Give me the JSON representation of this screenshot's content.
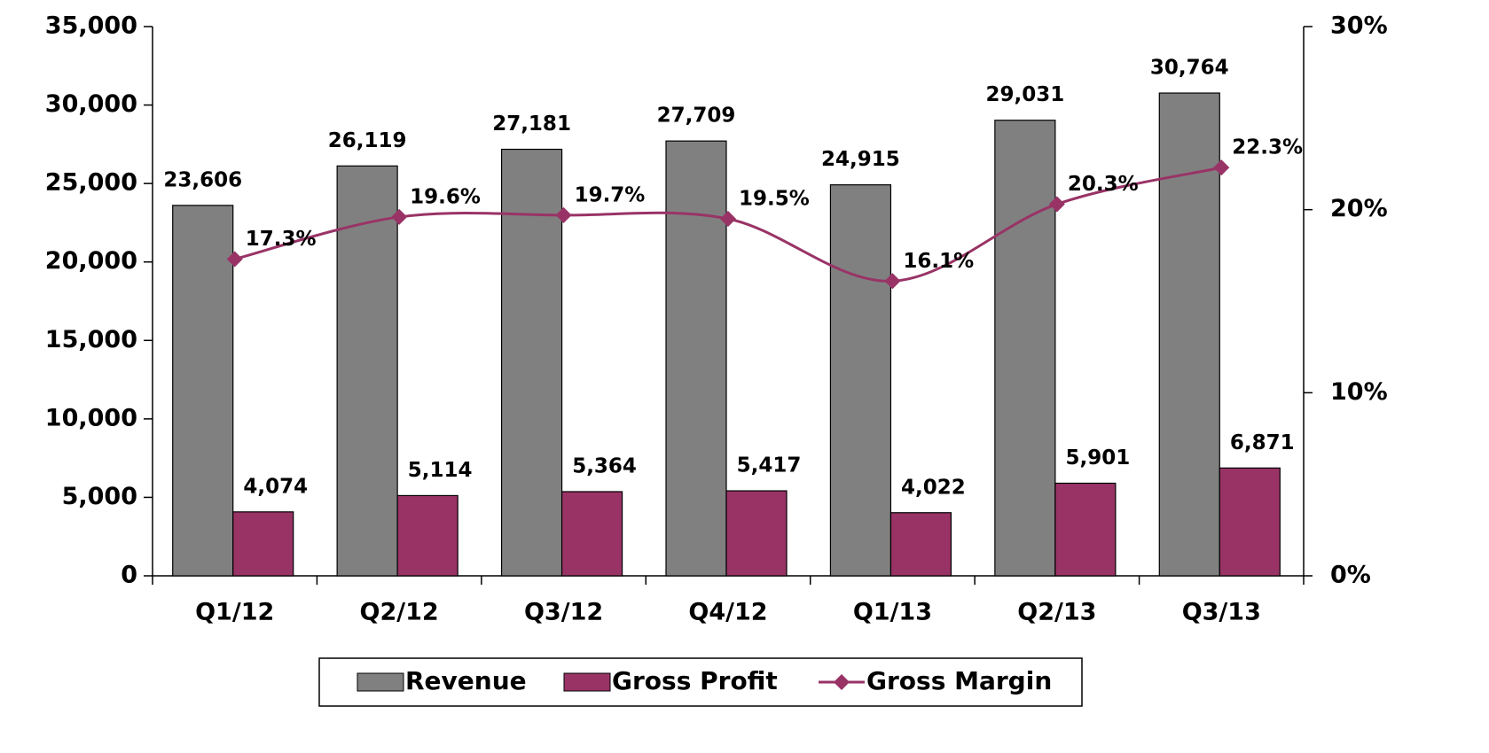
{
  "chart_data": {
    "type": "bar",
    "categories": [
      "Q1/12",
      "Q2/12",
      "Q3/12",
      "Q4/12",
      "Q1/13",
      "Q2/13",
      "Q3/13"
    ],
    "series": [
      {
        "name": "Revenue",
        "color": "#808080",
        "values": [
          23606,
          26119,
          27181,
          27709,
          24915,
          29031,
          30764
        ],
        "value_labels": [
          "23,606",
          "26,119",
          "27,181",
          "27,709",
          "24,915",
          "29,031",
          "30,764"
        ]
      },
      {
        "name": "Gross Profit",
        "color": "#993366",
        "values": [
          4074,
          5114,
          5364,
          5417,
          4022,
          5901,
          6871
        ],
        "value_labels": [
          "4,074",
          "5,114",
          "5,364",
          "5,417",
          "4,022",
          "5,901",
          "6,871"
        ]
      },
      {
        "name": "Gross Margin",
        "color": "#993366",
        "type": "line",
        "axis": "y2",
        "values": [
          17.3,
          19.6,
          19.7,
          19.5,
          16.1,
          20.3,
          22.3
        ],
        "value_labels": [
          "17.3%",
          "19.6%",
          "19.7%",
          "19.5%",
          "16.1%",
          "20.3%",
          "22.3%"
        ]
      }
    ],
    "ylim": [
      0,
      35000
    ],
    "yticks": [
      0,
      {
        "value": 5000,
        "label": "5,000"
      },
      {
        "value": 10000,
        "label": "10,000"
      },
      {
        "value": 15000,
        "label": "15,000"
      },
      {
        "value": 20000,
        "label": "20,000"
      },
      {
        "value": 25000,
        "label": "25,000"
      },
      {
        "value": 30000,
        "label": "30,000"
      },
      {
        "value": 35000,
        "label": "35,000"
      }
    ],
    "y2lim": [
      0,
      30
    ],
    "y2ticks": [
      {
        "value": 0,
        "label": "0%"
      },
      {
        "value": 10,
        "label": "10%"
      },
      {
        "value": 20,
        "label": "20%"
      },
      {
        "value": 30,
        "label": "30%"
      }
    ],
    "legend": "bottom"
  }
}
